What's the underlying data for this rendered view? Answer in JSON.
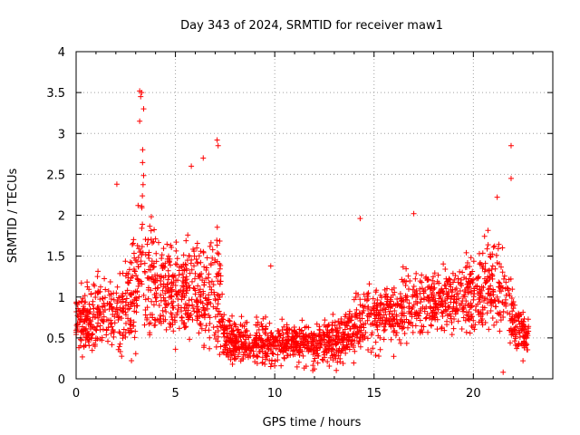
{
  "chart_data": {
    "type": "scatter",
    "title": "Day 343 of 2024, SRMTID for receiver maw1",
    "xlabel": "GPS time / hours",
    "ylabel": "SRMTID / TECUs",
    "xlim": [
      0,
      24
    ],
    "ylim": [
      0,
      4
    ],
    "xticks": [
      0,
      5,
      10,
      15,
      20
    ],
    "xtick_labels": [
      "0",
      "5",
      "10",
      "15",
      "20"
    ],
    "yticks": [
      0,
      0.5,
      1,
      1.5,
      2,
      2.5,
      3,
      3.5,
      4
    ],
    "ytick_labels": [
      "0",
      "0.5",
      "1",
      "1.5",
      "2",
      "2.5",
      "3",
      "3.5",
      "4"
    ],
    "grid": true,
    "marker": "+",
    "color": "#ff0000",
    "series": [
      {
        "name": "maw1",
        "x_range": [
          0,
          22.8
        ],
        "n_points": 2400,
        "envelope": [
          {
            "x": 0.0,
            "center": 0.7,
            "spread": 0.35
          },
          {
            "x": 1.0,
            "center": 0.75,
            "spread": 0.45
          },
          {
            "x": 1.5,
            "center": 0.8,
            "spread": 0.5
          },
          {
            "x": 2.0,
            "center": 0.7,
            "spread": 0.45
          },
          {
            "x": 2.5,
            "center": 0.85,
            "spread": 0.55
          },
          {
            "x": 3.0,
            "center": 1.1,
            "spread": 0.8
          },
          {
            "x": 3.3,
            "center": 1.6,
            "spread": 1.2
          },
          {
            "x": 3.6,
            "center": 1.2,
            "spread": 0.8
          },
          {
            "x": 4.5,
            "center": 1.1,
            "spread": 0.65
          },
          {
            "x": 5.5,
            "center": 1.05,
            "spread": 0.65
          },
          {
            "x": 6.5,
            "center": 1.0,
            "spread": 0.6
          },
          {
            "x": 7.2,
            "center": 1.1,
            "spread": 0.8
          },
          {
            "x": 7.5,
            "center": 0.45,
            "spread": 0.25
          },
          {
            "x": 9.0,
            "center": 0.45,
            "spread": 0.3
          },
          {
            "x": 10.5,
            "center": 0.45,
            "spread": 0.25
          },
          {
            "x": 12.0,
            "center": 0.4,
            "spread": 0.25
          },
          {
            "x": 13.5,
            "center": 0.5,
            "spread": 0.3
          },
          {
            "x": 14.5,
            "center": 0.75,
            "spread": 0.4
          },
          {
            "x": 16.0,
            "center": 0.8,
            "spread": 0.4
          },
          {
            "x": 17.5,
            "center": 1.0,
            "spread": 0.45
          },
          {
            "x": 19.0,
            "center": 0.95,
            "spread": 0.4
          },
          {
            "x": 20.5,
            "center": 1.1,
            "spread": 0.55
          },
          {
            "x": 21.5,
            "center": 1.2,
            "spread": 0.6
          },
          {
            "x": 22.0,
            "center": 0.7,
            "spread": 0.3
          },
          {
            "x": 22.8,
            "center": 0.5,
            "spread": 0.25
          }
        ],
        "notable_points": [
          {
            "x": 3.2,
            "y": 3.52
          },
          {
            "x": 3.3,
            "y": 3.5
          },
          {
            "x": 3.25,
            "y": 3.45
          },
          {
            "x": 3.4,
            "y": 3.3
          },
          {
            "x": 3.2,
            "y": 3.15
          },
          {
            "x": 3.35,
            "y": 2.8
          },
          {
            "x": 7.1,
            "y": 2.92
          },
          {
            "x": 7.15,
            "y": 2.85
          },
          {
            "x": 6.4,
            "y": 2.7
          },
          {
            "x": 5.8,
            "y": 2.6
          },
          {
            "x": 21.9,
            "y": 2.85
          },
          {
            "x": 21.9,
            "y": 2.45
          },
          {
            "x": 2.05,
            "y": 2.38
          },
          {
            "x": 9.8,
            "y": 1.38
          },
          {
            "x": 14.3,
            "y": 1.96
          },
          {
            "x": 17.0,
            "y": 2.02
          },
          {
            "x": 21.2,
            "y": 2.22
          },
          {
            "x": 21.5,
            "y": 0.08
          },
          {
            "x": 22.5,
            "y": 0.22
          },
          {
            "x": 12.0,
            "y": 0.12
          }
        ]
      }
    ]
  }
}
